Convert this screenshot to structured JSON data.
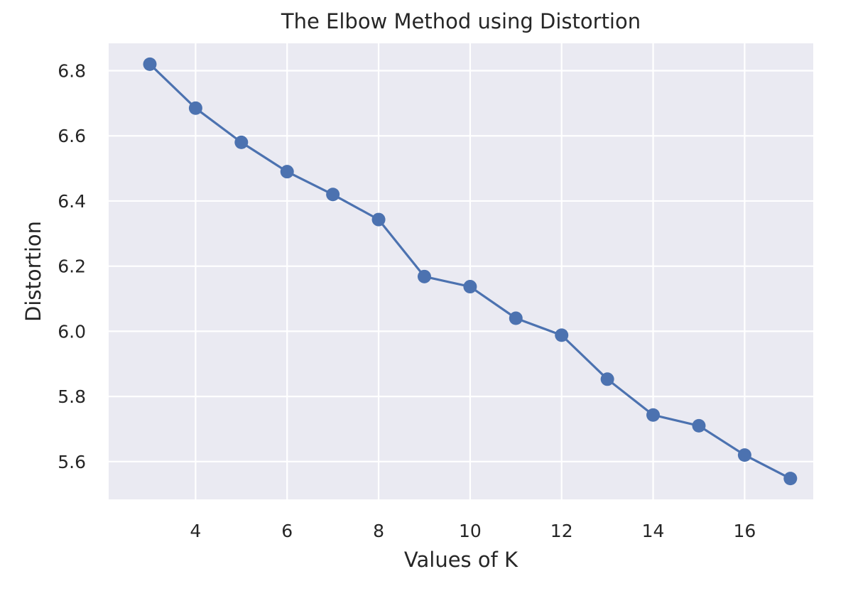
{
  "chart_data": {
    "type": "line",
    "title": "The Elbow Method using Distortion",
    "xlabel": "Values of K",
    "ylabel": "Distortion",
    "x": [
      3,
      4,
      5,
      6,
      7,
      8,
      9,
      10,
      11,
      12,
      13,
      14,
      15,
      16,
      17
    ],
    "series": [
      {
        "values": [
          6.82,
          6.685,
          6.58,
          6.49,
          6.42,
          6.343,
          6.168,
          6.137,
          6.04,
          5.988,
          5.853,
          5.743,
          5.71,
          5.62,
          5.548
        ],
        "color": "#4c72b0",
        "marker": "circle"
      }
    ],
    "xlim": [
      2.1,
      17.5
    ],
    "ylim": [
      5.484,
      6.884
    ],
    "x_ticks": [
      4,
      6,
      8,
      10,
      12,
      14,
      16
    ],
    "x_tick_labels": [
      "4",
      "6",
      "8",
      "10",
      "12",
      "14",
      "16"
    ],
    "y_ticks": [
      5.6,
      5.8,
      6.0,
      6.2,
      6.4,
      6.6,
      6.8
    ],
    "y_tick_labels": [
      "5.6",
      "5.8",
      "6.0",
      "6.2",
      "6.4",
      "6.6",
      "6.8"
    ],
    "grid": true,
    "legend": "none",
    "style": {
      "plot_background": "#eaeaf2",
      "grid_color": "#ffffff",
      "text_color": "#262626"
    }
  }
}
